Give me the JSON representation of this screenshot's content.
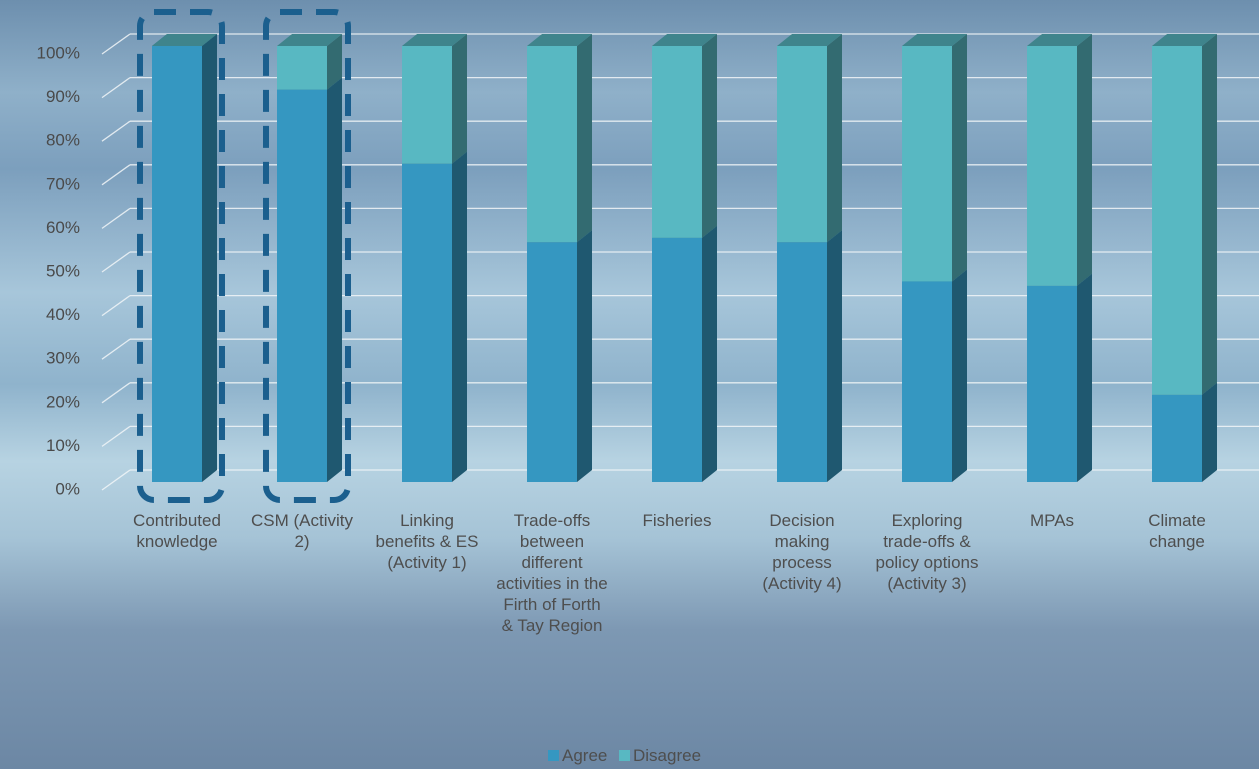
{
  "chart_data": {
    "type": "bar3d_stacked",
    "categories": [
      "Contributed knowledge",
      "CSM (Activity 2)",
      "Linking benefits & ES (Activity 1)",
      "Trade-offs between different activities in the Firth of Forth & Tay Region",
      "Fisheries",
      "Decision making process (Activity 4)",
      "Exploring trade-offs & policy options (Activity 3)",
      "MPAs",
      "Climate change"
    ],
    "series": [
      {
        "name": "Agree",
        "color": "#3597c1",
        "values": [
          100,
          90,
          73,
          55,
          56,
          55,
          46,
          45,
          20
        ]
      },
      {
        "name": "Disagree",
        "color": "#58b8c2",
        "values": [
          0,
          10,
          27,
          45,
          44,
          45,
          54,
          55,
          80
        ]
      }
    ],
    "ylim": [
      0,
      100
    ],
    "yticks": [
      {
        "value": 0,
        "label": "0%"
      },
      {
        "value": 10,
        "label": "10%"
      },
      {
        "value": 20,
        "label": "20%"
      },
      {
        "value": 30,
        "label": "30%"
      },
      {
        "value": 40,
        "label": "40%"
      },
      {
        "value": 50,
        "label": "50%"
      },
      {
        "value": 60,
        "label": "60%"
      },
      {
        "value": 70,
        "label": "70%"
      },
      {
        "value": 80,
        "label": "80%"
      },
      {
        "value": 90,
        "label": "90%"
      },
      {
        "value": 100,
        "label": "100%"
      }
    ],
    "grid": true,
    "legend": "bottom"
  }
}
